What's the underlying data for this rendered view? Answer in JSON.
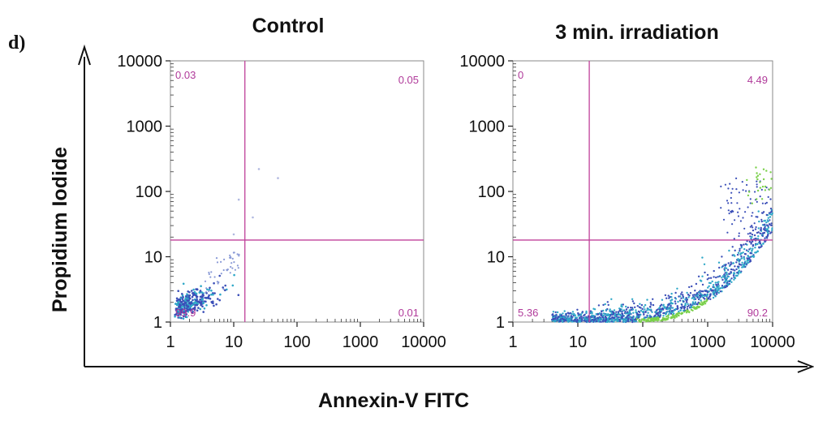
{
  "panel_letter": "d)",
  "colors": {
    "gate": "#c0409a",
    "quad_label": "#b03a9a",
    "frame": "#8a8a8a",
    "axis": "#111111",
    "density_low": "#3b4fb8",
    "density_mid": "#2fa8c8",
    "density_high": "#7ad04a"
  },
  "chart_data": [
    {
      "type": "scatter",
      "title": "Control",
      "xlabel": "Annexin-V FITC",
      "ylabel": "Propidium Iodide",
      "x_scale": "log",
      "y_scale": "log",
      "xlim": [
        1,
        10000
      ],
      "ylim": [
        1,
        10000
      ],
      "xticks": [
        "1",
        "10",
        "100",
        "1000",
        "10000"
      ],
      "yticks": [
        "1",
        "10",
        "100",
        "1000",
        "10000"
      ],
      "gate": {
        "x": 15,
        "y": 18
      },
      "quadrants": {
        "upper_left": "0.03",
        "upper_right": "0.05",
        "lower_left": "99.9",
        "lower_right": "0.01"
      }
    },
    {
      "type": "scatter",
      "title": "3 min. irradiation",
      "xlabel": "Annexin-V FITC",
      "ylabel": "Propidium Iodide",
      "x_scale": "log",
      "y_scale": "log",
      "xlim": [
        1,
        10000
      ],
      "ylim": [
        1,
        10000
      ],
      "xticks": [
        "1",
        "10",
        "100",
        "1000",
        "10000"
      ],
      "yticks": [
        "1",
        "10",
        "100",
        "1000",
        "10000"
      ],
      "gate": {
        "x": 15,
        "y": 18
      },
      "quadrants": {
        "upper_left": "0",
        "upper_right": "4.49",
        "lower_left": "5.36",
        "lower_right": "90.2"
      }
    }
  ]
}
